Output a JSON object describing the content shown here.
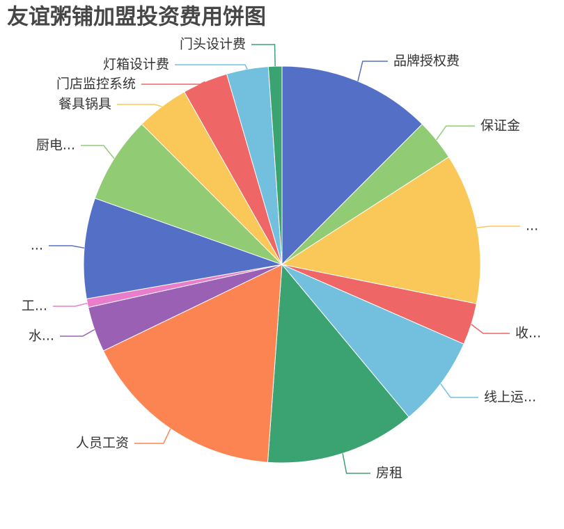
{
  "chart_data": {
    "type": "pie",
    "title": "友谊粥铺加盟投资费用饼图",
    "categories": [
      "品牌授权费",
      "保证金",
      "...",
      "收...",
      "线上运...",
      "房租",
      "人员工资",
      "水...",
      "工...",
      "...",
      "厨电...",
      "餐具锅具",
      "门店监控系统",
      "灯箱设计费",
      "门头设计费"
    ],
    "values": [
      12.5,
      3.4,
      12.3,
      3.4,
      7.4,
      12.2,
      16.7,
      3.7,
      0.7,
      8.2,
      7.1,
      4.3,
      3.7,
      3.4,
      1.1
    ],
    "colors": [
      "#5470c6",
      "#91cc75",
      "#fac858",
      "#ee6666",
      "#73c0de",
      "#3ba272",
      "#fc8452",
      "#9a60b4",
      "#ea7ccc",
      "#5470c6",
      "#91cc75",
      "#fac858",
      "#ee6666",
      "#73c0de",
      "#3ba272"
    ]
  }
}
